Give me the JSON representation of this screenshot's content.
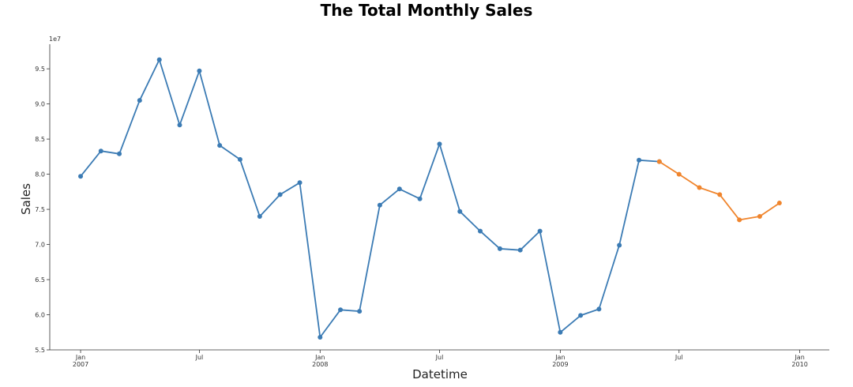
{
  "chart_data": {
    "type": "line",
    "title": "The Total Monthly Sales",
    "xlabel": "Datetime",
    "ylabel": "Sales",
    "y_offset_label": "1e7",
    "y_scale": 10000000,
    "ylim": [
      5.5,
      9.85
    ],
    "xlim": [
      "2006-11-15",
      "2010-02-15"
    ],
    "grid": false,
    "y_ticks": [
      {
        "value": 5.5,
        "label": "5.5"
      },
      {
        "value": 6.0,
        "label": "6.0"
      },
      {
        "value": 6.5,
        "label": "6.5"
      },
      {
        "value": 7.0,
        "label": "7.0"
      },
      {
        "value": 7.5,
        "label": "7.5"
      },
      {
        "value": 8.0,
        "label": "8.0"
      },
      {
        "value": 8.5,
        "label": "8.5"
      },
      {
        "value": 9.0,
        "label": "9.0"
      },
      {
        "value": 9.5,
        "label": "9.5"
      }
    ],
    "x_ticks": [
      {
        "date": "2007-01-01",
        "label": "Jan",
        "sublabel": "2007"
      },
      {
        "date": "2007-07-01",
        "label": "Jul",
        "sublabel": ""
      },
      {
        "date": "2008-01-01",
        "label": "Jan",
        "sublabel": "2008"
      },
      {
        "date": "2008-07-01",
        "label": "Jul",
        "sublabel": ""
      },
      {
        "date": "2009-01-01",
        "label": "Jan",
        "sublabel": "2009"
      },
      {
        "date": "2009-07-01",
        "label": "Jul",
        "sublabel": ""
      },
      {
        "date": "2010-01-01",
        "label": "Jan",
        "sublabel": "2010"
      }
    ],
    "series": [
      {
        "color": "#3b7bb4",
        "points": [
          {
            "date": "2007-01-01",
            "value": 7.97
          },
          {
            "date": "2007-02-01",
            "value": 8.33
          },
          {
            "date": "2007-03-01",
            "value": 8.29
          },
          {
            "date": "2007-04-01",
            "value": 9.05
          },
          {
            "date": "2007-05-01",
            "value": 9.63
          },
          {
            "date": "2007-06-01",
            "value": 8.7
          },
          {
            "date": "2007-07-01",
            "value": 9.47
          },
          {
            "date": "2007-08-01",
            "value": 8.41
          },
          {
            "date": "2007-09-01",
            "value": 8.21
          },
          {
            "date": "2007-10-01",
            "value": 7.4
          },
          {
            "date": "2007-11-01",
            "value": 7.71
          },
          {
            "date": "2007-12-01",
            "value": 7.88
          },
          {
            "date": "2008-01-01",
            "value": 5.68
          },
          {
            "date": "2008-02-01",
            "value": 6.07
          },
          {
            "date": "2008-03-01",
            "value": 6.05
          },
          {
            "date": "2008-04-01",
            "value": 7.56
          },
          {
            "date": "2008-05-01",
            "value": 7.79
          },
          {
            "date": "2008-06-01",
            "value": 7.65
          },
          {
            "date": "2008-07-01",
            "value": 8.43
          },
          {
            "date": "2008-08-01",
            "value": 7.47
          },
          {
            "date": "2008-09-01",
            "value": 7.19
          },
          {
            "date": "2008-10-01",
            "value": 6.94
          },
          {
            "date": "2008-11-01",
            "value": 6.92
          },
          {
            "date": "2008-12-01",
            "value": 7.19
          },
          {
            "date": "2009-01-01",
            "value": 5.75
          },
          {
            "date": "2009-02-01",
            "value": 5.99
          },
          {
            "date": "2009-03-01",
            "value": 6.08
          },
          {
            "date": "2009-04-01",
            "value": 6.99
          },
          {
            "date": "2009-05-01",
            "value": 8.2
          },
          {
            "date": "2009-06-01",
            "value": 8.18
          }
        ]
      },
      {
        "color": "#f0852d",
        "points": [
          {
            "date": "2009-06-01",
            "value": 8.18
          },
          {
            "date": "2009-07-01",
            "value": 8.0
          },
          {
            "date": "2009-08-01",
            "value": 7.81
          },
          {
            "date": "2009-09-01",
            "value": 7.71
          },
          {
            "date": "2009-10-01",
            "value": 7.35
          },
          {
            "date": "2009-11-01",
            "value": 7.4
          },
          {
            "date": "2009-12-01",
            "value": 7.59
          }
        ]
      }
    ]
  }
}
